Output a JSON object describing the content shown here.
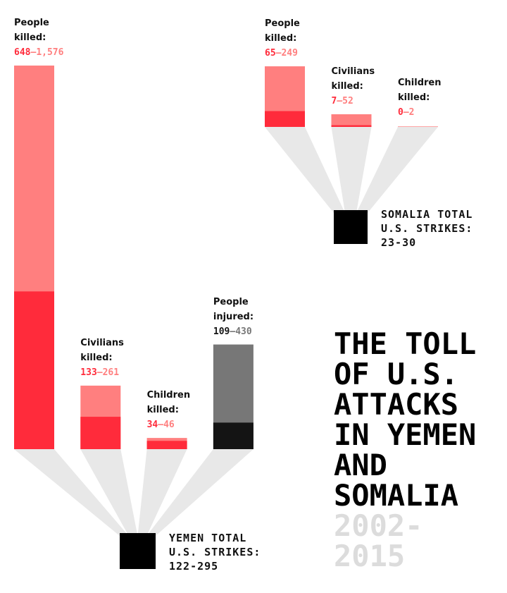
{
  "title": "THE TOLL OF U.S. ATTACKS IN YEMEN AND SOMALIA",
  "years": "2002-2015",
  "range_separator": "–",
  "chart_data": [
    {
      "type": "range-bar",
      "categories": [
        "People killed:",
        "Civilians killed:",
        "Children killed:",
        "People injured:"
      ],
      "values_low": [
        648,
        133,
        34,
        109
      ],
      "values_high": [
        1576,
        261,
        46,
        430
      ],
      "value_labels_high": [
        "1,576",
        "261",
        "46",
        "430"
      ],
      "low_colors": [
        "#ff2b3b",
        "#ff2b3b",
        "#ff2b3b",
        "#141414"
      ],
      "high_colors": [
        "#ff7f7f",
        "#ff7f7f",
        "#ff7f7f",
        "#777777"
      ],
      "total_title": "YEMEN TOTAL U.S. STRIKES:",
      "total": "122-295"
    },
    {
      "type": "range-bar",
      "categories": [
        "People killed:",
        "Civilians killed:",
        "Children killed:"
      ],
      "values_low": [
        65,
        7,
        0
      ],
      "values_high": [
        249,
        52,
        2
      ],
      "low_colors": [
        "#ff2b3b",
        "#ff2b3b",
        "#ff2b3b"
      ],
      "high_colors": [
        "#ff7f7f",
        "#ff7f7f",
        "#ff7f7f"
      ],
      "total_title": "SOMALIA TOTAL U.S. STRIKES:",
      "total": "23-30"
    }
  ]
}
